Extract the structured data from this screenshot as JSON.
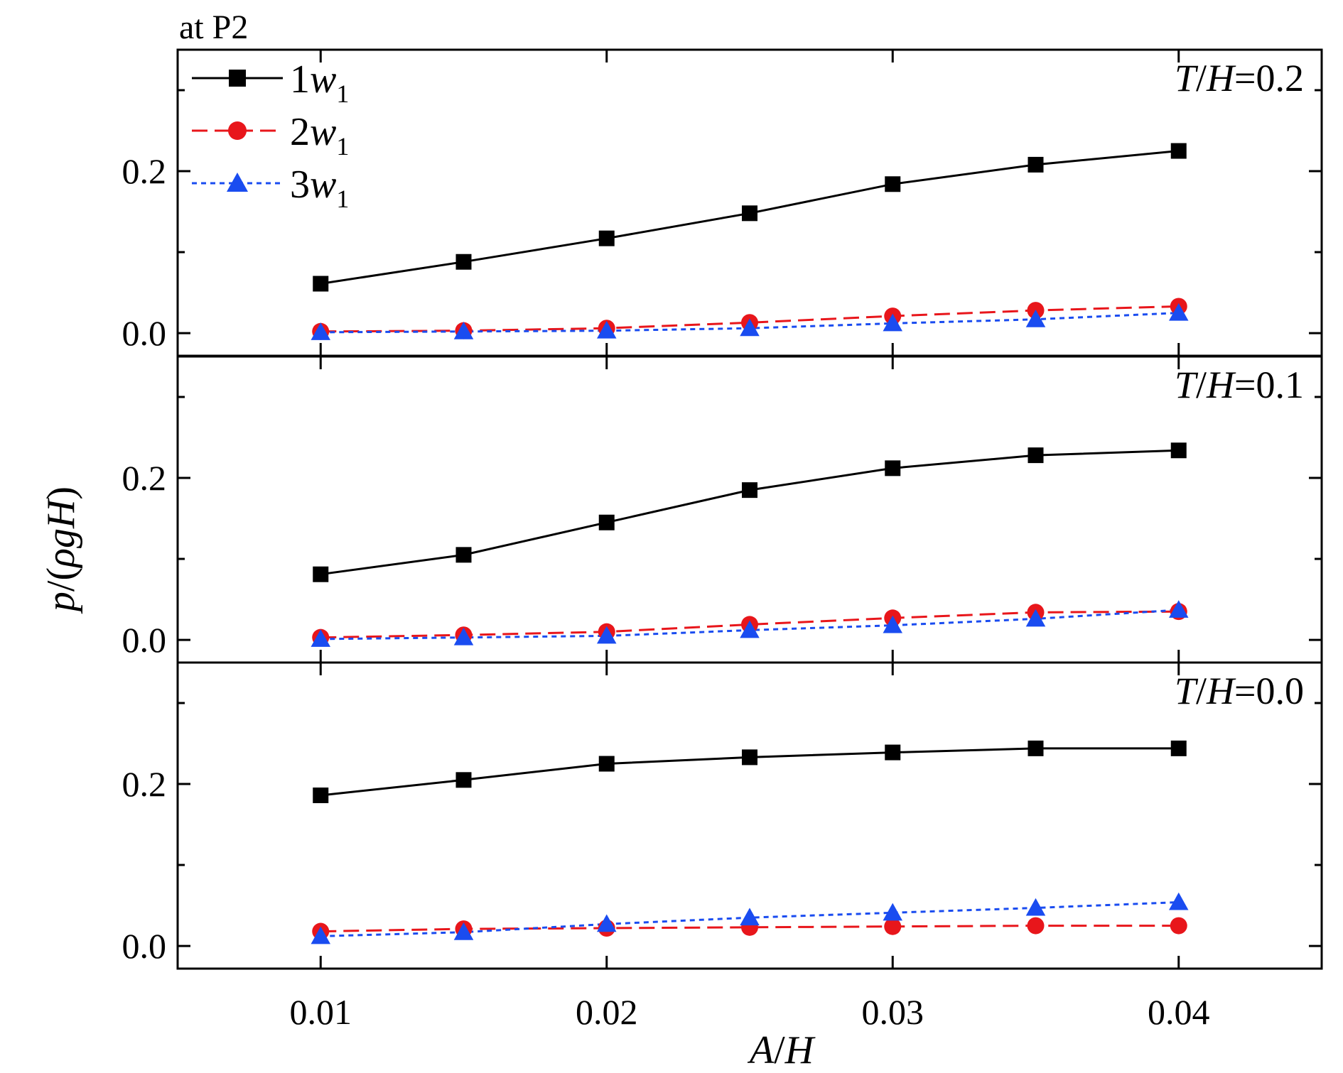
{
  "figure": {
    "top_label": "at  P2",
    "xlabel_a": "A",
    "xlabel_sep": "/",
    "xlabel_b": "H",
    "ylabel_a": "p",
    "ylabel_b": "/(",
    "ylabel_c": "ρgH",
    "ylabel_d": ")"
  },
  "legend": [
    {
      "num": "1",
      "var": "w",
      "sub": "1",
      "color": "#000000",
      "marker": "square",
      "dash": "solid"
    },
    {
      "num": "2",
      "var": "w",
      "sub": "1",
      "color": "#e8161b",
      "marker": "circle",
      "dash": "dashed"
    },
    {
      "num": "3",
      "var": "w",
      "sub": "1",
      "color": "#1a4cf0",
      "marker": "triangle",
      "dash": "dotted"
    }
  ],
  "chart_data": {
    "type": "line",
    "x": [
      0.01,
      0.015,
      0.02,
      0.025,
      0.03,
      0.035,
      0.04
    ],
    "xlim": [
      0.005,
      0.045
    ],
    "ylim": [
      -0.028,
      0.35
    ],
    "x_tick_values": [
      0.01,
      0.02,
      0.03,
      0.04
    ],
    "x_tick_labels": [
      "0.01",
      "0.02",
      "0.03",
      "0.04"
    ],
    "y_tick_values": [
      0.0,
      0.2
    ],
    "y_tick_labels": [
      "0.0",
      "0.2"
    ],
    "y_minor_ticks": [
      0.1,
      0.3
    ],
    "grid": false,
    "legend_position": "top-left",
    "panels": [
      {
        "annotation": {
          "a": "T",
          "sep": "/",
          "b": "H",
          "eq": "=0.2"
        },
        "series": [
          {
            "name": "1w1",
            "values": [
              0.061,
              0.088,
              0.117,
              0.148,
              0.184,
              0.208,
              0.225
            ]
          },
          {
            "name": "2w1",
            "values": [
              0.002,
              0.003,
              0.006,
              0.013,
              0.021,
              0.028,
              0.033
            ]
          },
          {
            "name": "3w1",
            "values": [
              0.001,
              0.002,
              0.003,
              0.006,
              0.012,
              0.017,
              0.025
            ]
          }
        ]
      },
      {
        "annotation": {
          "a": "T",
          "sep": "/",
          "b": "H",
          "eq": "=0.1"
        },
        "series": [
          {
            "name": "1w1",
            "values": [
              0.081,
              0.105,
              0.145,
              0.185,
              0.212,
              0.228,
              0.234
            ]
          },
          {
            "name": "2w1",
            "values": [
              0.003,
              0.006,
              0.01,
              0.019,
              0.027,
              0.034,
              0.035
            ]
          },
          {
            "name": "3w1",
            "values": [
              0.001,
              0.003,
              0.005,
              0.012,
              0.018,
              0.026,
              0.037
            ]
          }
        ]
      },
      {
        "annotation": {
          "a": "T",
          "sep": "/",
          "b": "H",
          "eq": "=0.0"
        },
        "series": [
          {
            "name": "1w1",
            "values": [
              0.186,
              0.205,
              0.225,
              0.233,
              0.239,
              0.244,
              0.244
            ]
          },
          {
            "name": "2w1",
            "values": [
              0.018,
              0.021,
              0.022,
              0.023,
              0.024,
              0.025,
              0.025
            ]
          },
          {
            "name": "3w1",
            "values": [
              0.012,
              0.017,
              0.027,
              0.035,
              0.041,
              0.047,
              0.054
            ]
          }
        ]
      }
    ]
  }
}
